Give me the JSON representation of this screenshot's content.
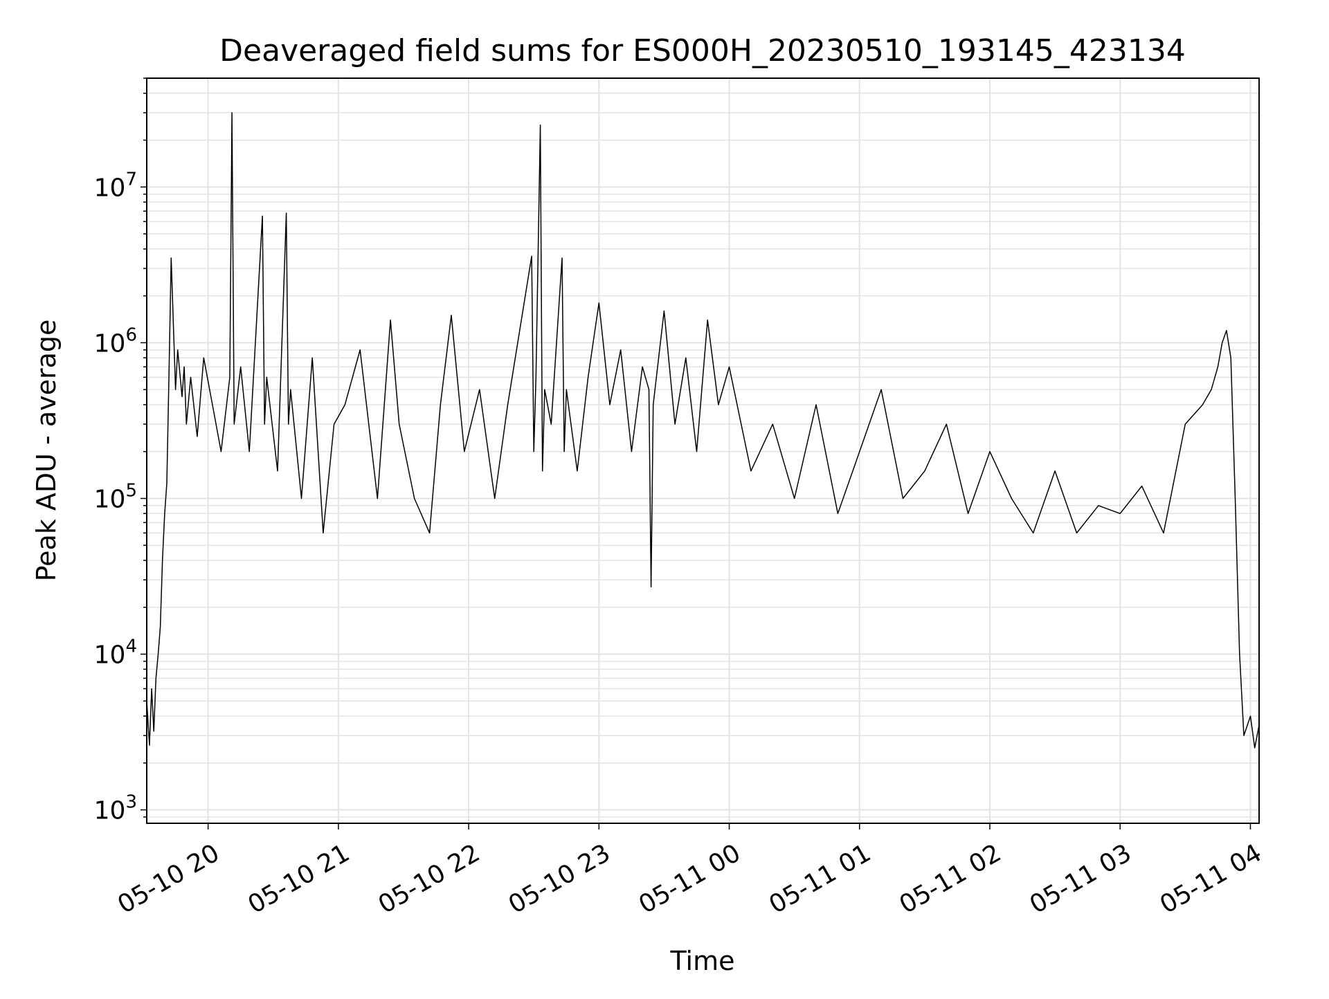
{
  "chart_data": {
    "type": "line",
    "title": "Deaveraged field sums for ES000H_20230510_193145_423134",
    "xlabel": "Time",
    "ylabel": "Peak ADU - average",
    "yscale": "log",
    "ylim": [
      820,
      50000000
    ],
    "xlim": [
      "2023-05-10 19:31:45",
      "2023-05-11 04:04:00"
    ],
    "grid": true,
    "line_color": "#000000",
    "x_ticks": [
      {
        "value": "2023-05-10 20:00",
        "label": "05-10 20"
      },
      {
        "value": "2023-05-10 21:00",
        "label": "05-10 21"
      },
      {
        "value": "2023-05-10 22:00",
        "label": "05-10 22"
      },
      {
        "value": "2023-05-10 23:00",
        "label": "05-10 23"
      },
      {
        "value": "2023-05-11 00:00",
        "label": "05-11 00"
      },
      {
        "value": "2023-05-11 01:00",
        "label": "05-11 01"
      },
      {
        "value": "2023-05-11 02:00",
        "label": "05-11 02"
      },
      {
        "value": "2023-05-11 03:00",
        "label": "05-11 03"
      },
      {
        "value": "2023-05-11 04:00",
        "label": "05-11 04"
      }
    ],
    "y_ticks": [
      {
        "value": 1000,
        "base": "10",
        "exp": "3"
      },
      {
        "value": 10000,
        "base": "10",
        "exp": "4"
      },
      {
        "value": 100000,
        "base": "10",
        "exp": "5"
      },
      {
        "value": 1000000,
        "base": "10",
        "exp": "6"
      },
      {
        "value": 10000000,
        "base": "10",
        "exp": "7"
      }
    ],
    "series": [
      {
        "x": [
          "2023-05-10 19:31:45",
          "2023-05-10 19:33",
          "2023-05-10 19:34",
          "2023-05-10 19:35",
          "2023-05-10 19:36",
          "2023-05-10 19:37",
          "2023-05-10 19:38",
          "2023-05-10 19:39",
          "2023-05-10 19:40",
          "2023-05-10 19:41",
          "2023-05-10 19:42",
          "2023-05-10 19:43",
          "2023-05-10 19:45",
          "2023-05-10 19:46",
          "2023-05-10 19:48",
          "2023-05-10 19:49",
          "2023-05-10 19:50",
          "2023-05-10 19:52",
          "2023-05-10 19:55",
          "2023-05-10 19:58",
          "2023-05-10 20:02",
          "2023-05-10 20:06",
          "2023-05-10 20:10",
          "2023-05-10 20:11",
          "2023-05-10 20:12",
          "2023-05-10 20:15",
          "2023-05-10 20:19",
          "2023-05-10 20:25",
          "2023-05-10 20:26",
          "2023-05-10 20:27",
          "2023-05-10 20:32",
          "2023-05-10 20:36",
          "2023-05-10 20:37",
          "2023-05-10 20:38",
          "2023-05-10 20:43",
          "2023-05-10 20:48",
          "2023-05-10 20:53",
          "2023-05-10 20:58",
          "2023-05-10 21:03",
          "2023-05-10 21:10",
          "2023-05-10 21:18",
          "2023-05-10 21:24",
          "2023-05-10 21:28",
          "2023-05-10 21:35",
          "2023-05-10 21:42",
          "2023-05-10 21:47",
          "2023-05-10 21:52",
          "2023-05-10 21:58",
          "2023-05-10 22:05",
          "2023-05-10 22:12",
          "2023-05-10 22:18",
          "2023-05-10 22:29",
          "2023-05-10 22:30",
          "2023-05-10 22:31",
          "2023-05-10 22:33",
          "2023-05-10 22:34",
          "2023-05-10 22:35",
          "2023-05-10 22:38",
          "2023-05-10 22:43",
          "2023-05-10 22:44",
          "2023-05-10 22:45",
          "2023-05-10 22:50",
          "2023-05-10 22:55",
          "2023-05-10 23:00",
          "2023-05-10 23:05",
          "2023-05-10 23:10",
          "2023-05-10 23:15",
          "2023-05-10 23:20",
          "2023-05-10 23:23",
          "2023-05-10 23:24",
          "2023-05-10 23:25",
          "2023-05-10 23:30",
          "2023-05-10 23:35",
          "2023-05-10 23:40",
          "2023-05-10 23:45",
          "2023-05-10 23:50",
          "2023-05-10 23:55",
          "2023-05-11 00:00",
          "2023-05-11 00:10",
          "2023-05-11 00:20",
          "2023-05-11 00:30",
          "2023-05-11 00:40",
          "2023-05-11 00:50",
          "2023-05-11 01:00",
          "2023-05-11 01:10",
          "2023-05-11 01:20",
          "2023-05-11 01:30",
          "2023-05-11 01:40",
          "2023-05-11 01:50",
          "2023-05-11 02:00",
          "2023-05-11 02:10",
          "2023-05-11 02:20",
          "2023-05-11 02:30",
          "2023-05-11 02:40",
          "2023-05-11 02:50",
          "2023-05-11 03:00",
          "2023-05-11 03:10",
          "2023-05-11 03:20",
          "2023-05-11 03:30",
          "2023-05-11 03:38",
          "2023-05-11 03:42",
          "2023-05-11 03:45",
          "2023-05-11 03:47",
          "2023-05-11 03:49",
          "2023-05-11 03:51",
          "2023-05-11 03:53",
          "2023-05-11 03:55",
          "2023-05-11 03:57",
          "2023-05-11 04:00",
          "2023-05-11 04:02",
          "2023-05-11 04:04"
        ],
        "y": [
          5000,
          2600,
          6000,
          3200,
          7000,
          10000,
          15000,
          40000,
          80000,
          125000,
          650000,
          3500000,
          500000,
          900000,
          450000,
          700000,
          300000,
          600000,
          250000,
          800000,
          400000,
          200000,
          600000,
          30000000,
          300000,
          700000,
          200000,
          6500000,
          300000,
          600000,
          150000,
          6800000,
          300000,
          500000,
          100000,
          800000,
          60000,
          300000,
          400000,
          900000,
          100000,
          1400000,
          300000,
          100000,
          60000,
          400000,
          1500000,
          200000,
          500000,
          100000,
          400000,
          3600000,
          200000,
          600000,
          25000000,
          150000,
          500000,
          300000,
          3500000,
          200000,
          500000,
          150000,
          600000,
          1800000,
          400000,
          900000,
          200000,
          700000,
          500000,
          27000,
          400000,
          1600000,
          300000,
          800000,
          200000,
          1400000,
          400000,
          700000,
          150000,
          300000,
          100000,
          400000,
          80000,
          200000,
          500000,
          100000,
          150000,
          300000,
          80000,
          200000,
          100000,
          60000,
          150000,
          60000,
          90000,
          80000,
          120000,
          60000,
          300000,
          400000,
          500000,
          700000,
          1000000,
          1200000,
          800000,
          100000,
          10000,
          3000,
          4000,
          2500,
          3500
        ]
      }
    ]
  }
}
